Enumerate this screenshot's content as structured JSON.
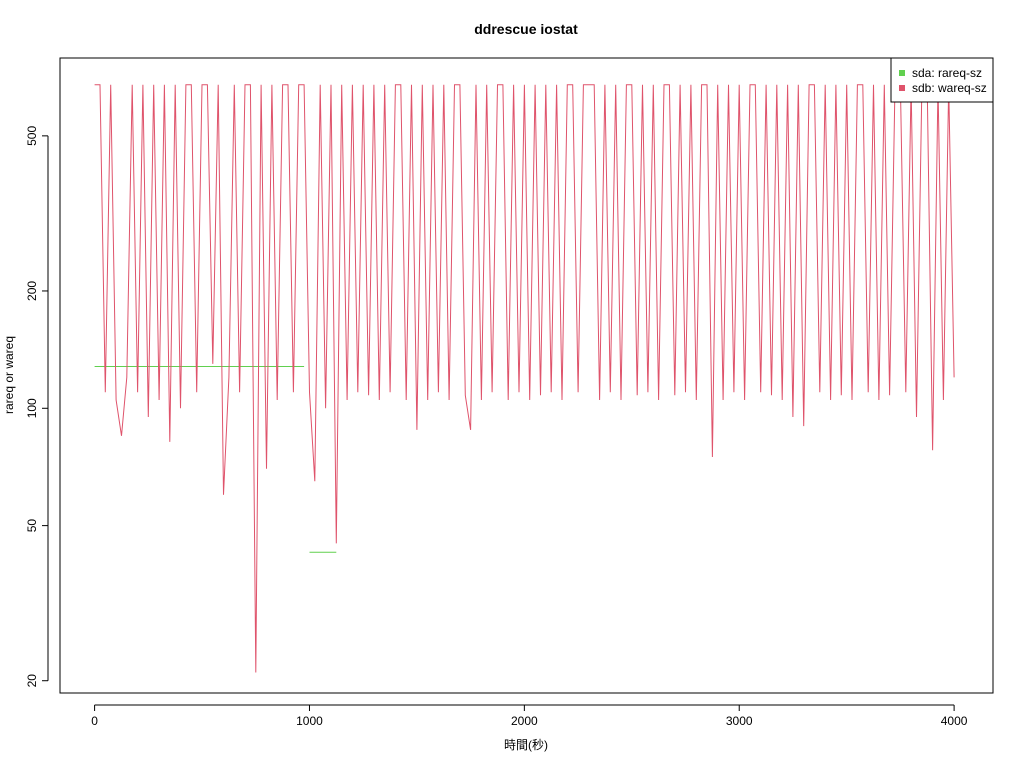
{
  "chart_data": {
    "type": "line",
    "title": "ddrescue iostat",
    "x_label": "時間(秒)",
    "y_label": "rareq or wareq",
    "log_y": true,
    "legend": "topright",
    "xlim": [
      -161,
      4181
    ],
    "xticks": [
      0,
      1000,
      2000,
      3000,
      4000
    ],
    "ylim": [
      18.6,
      792
    ],
    "yticks": [
      20,
      50,
      100,
      200,
      500
    ],
    "series": [
      {
        "name": "sda: rareq-sz",
        "color": "#61D04F",
        "x": [
          0,
          975,
          990,
          1000,
          1125
        ],
        "values": [
          128,
          128,
          null,
          42.7,
          42.7
        ]
      },
      {
        "name": "sdb: wareq-sz",
        "color": "#DF536B",
        "x": [
          0,
          25,
          50,
          75,
          100,
          125,
          150,
          175,
          200,
          225,
          250,
          275,
          300,
          325,
          350,
          375,
          400,
          425,
          450,
          475,
          500,
          525,
          550,
          575,
          600,
          625,
          650,
          675,
          700,
          725,
          750,
          775,
          800,
          825,
          850,
          875,
          900,
          925,
          950,
          975,
          1000,
          1025,
          1050,
          1075,
          1100,
          1125,
          1150,
          1175,
          1200,
          1225,
          1250,
          1275,
          1300,
          1325,
          1350,
          1375,
          1400,
          1425,
          1450,
          1475,
          1500,
          1525,
          1550,
          1575,
          1600,
          1625,
          1650,
          1675,
          1700,
          1725,
          1750,
          1775,
          1800,
          1825,
          1850,
          1875,
          1900,
          1925,
          1950,
          1975,
          2000,
          2025,
          2050,
          2075,
          2100,
          2125,
          2150,
          2175,
          2200,
          2225,
          2250,
          2275,
          2300,
          2325,
          2350,
          2375,
          2400,
          2425,
          2450,
          2475,
          2500,
          2525,
          2550,
          2575,
          2600,
          2625,
          2650,
          2675,
          2700,
          2725,
          2750,
          2775,
          2800,
          2825,
          2850,
          2875,
          2900,
          2925,
          2950,
          2975,
          3000,
          3025,
          3050,
          3075,
          3100,
          3125,
          3150,
          3175,
          3200,
          3225,
          3250,
          3275,
          3300,
          3325,
          3350,
          3375,
          3400,
          3425,
          3450,
          3475,
          3500,
          3525,
          3550,
          3575,
          3600,
          3625,
          3650,
          3675,
          3700,
          3725,
          3750,
          3775,
          3800,
          3825,
          3850,
          3875,
          3900,
          3925,
          3950,
          3975,
          4000
        ],
        "values": [
          676,
          676,
          110,
          676,
          105,
          85,
          120,
          676,
          110,
          676,
          95,
          676,
          105,
          676,
          82,
          676,
          100,
          676,
          676,
          110,
          676,
          676,
          130,
          676,
          60,
          120,
          676,
          110,
          676,
          676,
          21,
          676,
          70,
          676,
          105,
          676,
          676,
          110,
          676,
          676,
          110,
          65,
          676,
          100,
          676,
          45,
          676,
          105,
          676,
          110,
          676,
          108,
          676,
          105,
          676,
          110,
          676,
          676,
          105,
          676,
          88,
          676,
          105,
          676,
          110,
          676,
          105,
          676,
          676,
          108,
          88,
          676,
          105,
          676,
          110,
          676,
          676,
          105,
          676,
          110,
          676,
          105,
          676,
          108,
          676,
          110,
          676,
          105,
          676,
          676,
          110,
          676,
          676,
          676,
          105,
          676,
          110,
          676,
          105,
          676,
          676,
          108,
          676,
          110,
          676,
          105,
          676,
          676,
          108,
          676,
          110,
          676,
          105,
          676,
          676,
          75,
          676,
          105,
          676,
          110,
          676,
          105,
          676,
          676,
          110,
          676,
          108,
          676,
          105,
          676,
          95,
          676,
          90,
          676,
          676,
          110,
          676,
          105,
          676,
          108,
          676,
          105,
          676,
          676,
          110,
          676,
          105,
          676,
          108,
          676,
          676,
          110,
          676,
          95,
          676,
          676,
          78,
          676,
          105,
          676,
          120
        ]
      }
    ]
  }
}
